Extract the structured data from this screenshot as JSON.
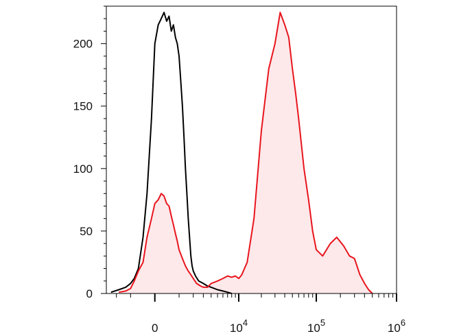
{
  "chart_data": {
    "type": "area",
    "title": "",
    "xlabel": "",
    "ylabel": "",
    "x_scale": "biexponential",
    "x_tick_labels": [
      {
        "value": 0,
        "label": "0"
      },
      {
        "value": 10000,
        "base": "10",
        "exp": "4"
      },
      {
        "value": 100000,
        "base": "10",
        "exp": "5"
      },
      {
        "value": 1000000,
        "base": "10",
        "exp": "6"
      }
    ],
    "y_ticks": [
      0,
      50,
      100,
      150,
      200
    ],
    "ylim": [
      0,
      230
    ],
    "grid": false,
    "legend": "none",
    "series": [
      {
        "color": "#000000",
        "fill": "none",
        "x": [
          -2500,
          -1800,
          -1300,
          -1000,
          -800,
          -600,
          -400,
          -250,
          -100,
          0,
          100,
          200,
          300,
          400,
          500,
          600,
          700,
          800,
          900,
          1000,
          1100,
          1200,
          1300,
          1400,
          1500,
          1600,
          1700,
          1800,
          1900,
          2000,
          2200,
          2500,
          3000,
          3500,
          4000,
          5000,
          6000,
          7000,
          8000
        ],
        "values": [
          1,
          3,
          5,
          8,
          12,
          20,
          45,
          80,
          140,
          200,
          215,
          220,
          225,
          218,
          222,
          210,
          215,
          205,
          200,
          190,
          170,
          150,
          125,
          100,
          80,
          60,
          45,
          30,
          22,
          18,
          14,
          10,
          8,
          6,
          5,
          3,
          2,
          1,
          0
        ]
      },
      {
        "color": "#e8141c",
        "fill": "#fde8ea",
        "x": [
          -1800,
          -1300,
          -1000,
          -800,
          -600,
          -400,
          -250,
          -100,
          0,
          100,
          200,
          300,
          400,
          500,
          600,
          700,
          800,
          900,
          1000,
          1200,
          1400,
          1600,
          1800,
          2000,
          2300,
          2700,
          3000,
          3500,
          4000,
          5000,
          6000,
          7000,
          8000,
          9000,
          10000,
          11000,
          13000,
          16000,
          20000,
          25000,
          30000,
          35000,
          40000,
          45000,
          50000,
          55000,
          60000,
          70000,
          80000,
          90000,
          100000,
          120000,
          150000,
          180000,
          220000,
          260000,
          300000,
          350000,
          400000,
          450000,
          500000
        ],
        "values": [
          1,
          2,
          4,
          10,
          18,
          25,
          45,
          60,
          72,
          75,
          80,
          78,
          72,
          70,
          62,
          55,
          48,
          42,
          35,
          28,
          22,
          18,
          15,
          12,
          8,
          6,
          5,
          5,
          8,
          10,
          12,
          14,
          13,
          14,
          12,
          15,
          25,
          60,
          130,
          180,
          200,
          225,
          215,
          205,
          180,
          160,
          140,
          100,
          75,
          50,
          35,
          30,
          40,
          45,
          38,
          30,
          28,
          15,
          8,
          3,
          0
        ]
      }
    ]
  }
}
